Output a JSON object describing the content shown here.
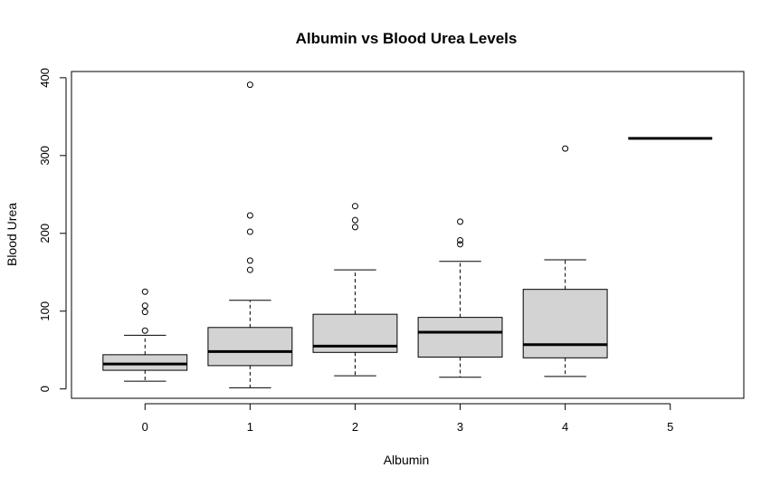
{
  "chart_data": {
    "type": "boxplot",
    "title": "Albumin vs Blood Urea Levels",
    "xlabel": "Albumin",
    "ylabel": "Blood Urea",
    "categories": [
      "0",
      "1",
      "2",
      "3",
      "4",
      "5"
    ],
    "yticks": [
      "0",
      "100",
      "200",
      "300",
      "400"
    ],
    "ylim": [
      -12,
      408
    ],
    "grid": false,
    "legend": "none",
    "box_fill": "#d3d3d3",
    "stroke": "#000000",
    "boxes": [
      {
        "category": "0",
        "min": 10,
        "q1": 24,
        "median": 32,
        "q3": 44,
        "max": 69,
        "outliers": [
          75,
          99,
          107,
          125
        ]
      },
      {
        "category": "1",
        "min": 1.5,
        "q1": 30,
        "median": 48,
        "q3": 79,
        "max": 114,
        "outliers": [
          153,
          165,
          202,
          223,
          391
        ]
      },
      {
        "category": "2",
        "min": 17,
        "q1": 47,
        "median": 55,
        "q3": 96,
        "max": 153,
        "outliers": [
          208,
          217,
          235
        ]
      },
      {
        "category": "3",
        "min": 15,
        "q1": 41,
        "median": 73,
        "q3": 92,
        "max": 164,
        "outliers": [
          186,
          191,
          215
        ]
      },
      {
        "category": "4",
        "min": 16,
        "q1": 40,
        "median": 57,
        "q3": 128,
        "max": 166,
        "outliers": [
          309
        ]
      },
      {
        "category": "5",
        "min": 322,
        "q1": 322,
        "median": 322,
        "q3": 322,
        "max": 322,
        "outliers": []
      }
    ]
  }
}
